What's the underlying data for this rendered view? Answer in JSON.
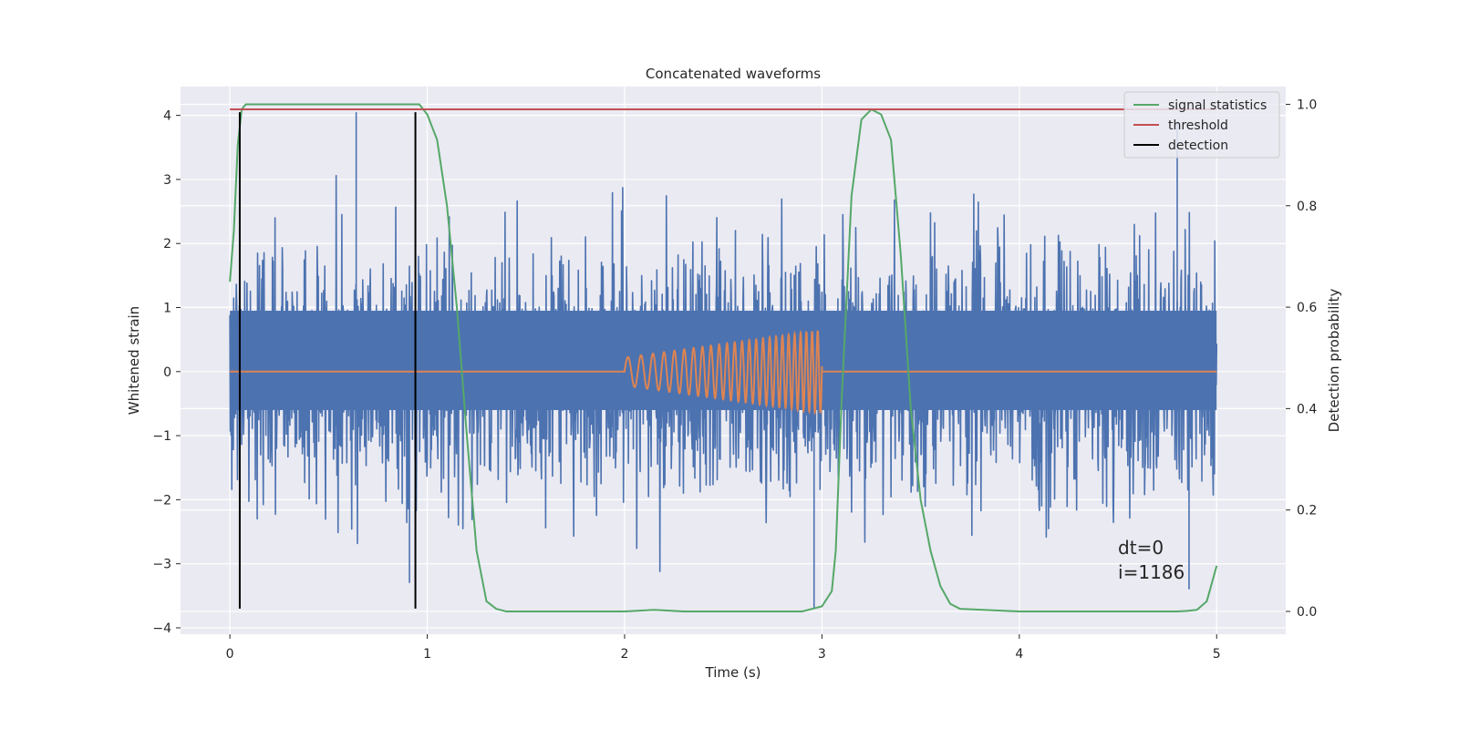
{
  "chart_data": {
    "type": "line",
    "title": "Concatenated waveforms",
    "xlabel": "Time (s)",
    "ylabel": "Whitened strain",
    "y2label": "Detection probability",
    "xlim": [
      -0.25,
      5.35
    ],
    "ylim": [
      -4.1,
      4.45
    ],
    "y2lim": [
      -0.045,
      1.035
    ],
    "xticks": [
      0,
      1,
      2,
      3,
      4,
      5
    ],
    "yticks": [
      -4,
      -3,
      -2,
      -1,
      0,
      1,
      2,
      3,
      4
    ],
    "y2ticks": [
      0.0,
      0.2,
      0.4,
      0.6,
      0.8,
      1.0
    ],
    "xtick_labels": [
      "0",
      "1",
      "2",
      "3",
      "4",
      "5"
    ],
    "ytick_labels": [
      "−4",
      "−3",
      "−2",
      "−1",
      "0",
      "1",
      "2",
      "3",
      "4"
    ],
    "y2tick_labels": [
      "0.0",
      "0.2",
      "0.4",
      "0.6",
      "0.8",
      "1.0"
    ],
    "grid": true,
    "legend_position": "top-right",
    "series": [
      {
        "name": "",
        "axis": "left",
        "color": "#4c72b0",
        "kind": "noise",
        "x_range": [
          0,
          5
        ],
        "band": [
          -0.6,
          0.95
        ],
        "max": 4.05,
        "min": -3.7
      },
      {
        "name": "",
        "axis": "left",
        "color": "#dd8452",
        "kind": "chirp",
        "x_range": [
          0,
          5
        ],
        "chirp_start": 2.0,
        "chirp_end": 3.0,
        "amplitude_start": 0.22,
        "amplitude_end": 0.65
      },
      {
        "name": "signal statistics",
        "axis": "right",
        "color": "#55a868",
        "x": [
          0,
          0.02,
          0.04,
          0.06,
          0.08,
          0.12,
          0.2,
          0.5,
          0.9,
          0.96,
          1.0,
          1.05,
          1.1,
          1.15,
          1.2,
          1.25,
          1.3,
          1.35,
          1.4,
          1.6,
          2.0,
          2.15,
          2.3,
          2.6,
          2.9,
          2.95,
          3.0,
          3.05,
          3.07,
          3.1,
          3.15,
          3.2,
          3.25,
          3.3,
          3.35,
          3.4,
          3.45,
          3.5,
          3.55,
          3.6,
          3.65,
          3.7,
          4.0,
          4.5,
          4.8,
          4.85,
          4.9,
          4.95,
          5.0
        ],
        "values": [
          0.65,
          0.75,
          0.92,
          0.99,
          1.0,
          1.0,
          1.0,
          1.0,
          1.0,
          1.0,
          0.98,
          0.93,
          0.8,
          0.6,
          0.35,
          0.12,
          0.02,
          0.005,
          0.0,
          0.0,
          0.0,
          0.003,
          0.0,
          0.0,
          0.0,
          0.005,
          0.01,
          0.04,
          0.12,
          0.42,
          0.82,
          0.97,
          0.99,
          0.98,
          0.93,
          0.7,
          0.4,
          0.22,
          0.12,
          0.05,
          0.015,
          0.005,
          0.0,
          0.0,
          0.0,
          0.001,
          0.003,
          0.02,
          0.09
        ]
      },
      {
        "name": "threshold",
        "axis": "right",
        "color": "#c44e52",
        "x": [
          0,
          5
        ],
        "values": [
          0.99,
          0.99
        ]
      },
      {
        "name": "detection",
        "axis": "left",
        "color": "#000000",
        "kind": "vlines",
        "x": [
          0.05,
          0.94
        ],
        "y_range": [
          -3.7,
          4.05
        ]
      }
    ],
    "annotations": [
      {
        "text": "dt=0",
        "x": 4.5,
        "y": -2.85
      },
      {
        "text": "i=1186",
        "x": 4.5,
        "y": -3.23
      }
    ]
  }
}
